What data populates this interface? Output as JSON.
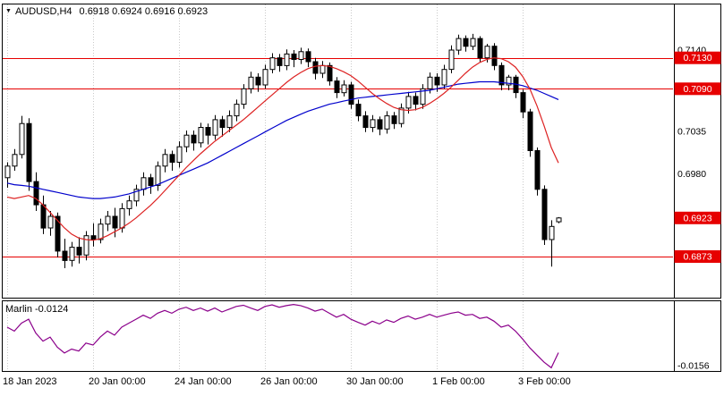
{
  "header": {
    "dropdown_icon": "▼",
    "symbol_period": "AUDUSD,H4",
    "open": "0.6918",
    "high": "0.6924",
    "low": "0.6916",
    "close": "0.6923"
  },
  "colors": {
    "level_line": "#e60000",
    "badge_bg": "#e60000",
    "badge_text": "#ffffff",
    "ma_slow": "#0000cc",
    "ma_fast": "#dd2222",
    "grid": "#c9c9c9",
    "bull": "#ffffff",
    "bear": "#000000",
    "outline": "#000000",
    "border": "#000000"
  },
  "chart_data": [
    {
      "type": "candlestick",
      "symbol": "AUDUSD",
      "timeframe": "H4",
      "title": "AUDUSD,H4",
      "current_ohlc": {
        "open": 0.6918,
        "high": 0.6924,
        "low": 0.6916,
        "close": 0.6923
      },
      "ylim": [
        0.6821,
        0.7199
      ],
      "x_tick_labels": [
        "18 Jan 2023",
        "20 Jan 00:00",
        "24 Jan 00:00",
        "26 Jan 00:00",
        "30 Jan 00:00",
        "1 Feb 00:00",
        "3 Feb 00:00"
      ],
      "x_tick_indices": [
        0,
        12,
        24,
        36,
        48,
        60,
        72
      ],
      "y_plain_labels": [
        {
          "label": "0.7140",
          "value": 0.714
        },
        {
          "label": "0.7035",
          "value": 0.7035
        },
        {
          "label": "0.6980",
          "value": 0.698
        }
      ],
      "badges": [
        {
          "label": "0.7130",
          "value": 0.713
        },
        {
          "label": "0.7090",
          "value": 0.709
        },
        {
          "label": "0.6923",
          "value": 0.6923
        },
        {
          "label": "0.6873",
          "value": 0.6873
        }
      ],
      "h_lines": [
        0.713,
        0.709,
        0.6873
      ],
      "current_price": 0.6923,
      "candles": [
        [
          0.6975,
          0.6995,
          0.6962,
          0.699
        ],
        [
          0.699,
          0.7012,
          0.6984,
          0.7005
        ],
        [
          0.7005,
          0.7055,
          0.7,
          0.7045
        ],
        [
          0.7045,
          0.7052,
          0.6958,
          0.697
        ],
        [
          0.697,
          0.6982,
          0.6932,
          0.694
        ],
        [
          0.694,
          0.6952,
          0.6902,
          0.691
        ],
        [
          0.691,
          0.6932,
          0.69,
          0.6925
        ],
        [
          0.6925,
          0.693,
          0.6872,
          0.688
        ],
        [
          0.688,
          0.6896,
          0.6858,
          0.6868
        ],
        [
          0.6868,
          0.6892,
          0.686,
          0.6885
        ],
        [
          0.6885,
          0.6898,
          0.6864,
          0.6875
        ],
        [
          0.6875,
          0.6906,
          0.6868,
          0.69
        ],
        [
          0.69,
          0.6916,
          0.6886,
          0.6895
        ],
        [
          0.6895,
          0.6922,
          0.689,
          0.6915
        ],
        [
          0.6915,
          0.6932,
          0.6906,
          0.6925
        ],
        [
          0.6925,
          0.6936,
          0.6898,
          0.691
        ],
        [
          0.691,
          0.6942,
          0.6904,
          0.6935
        ],
        [
          0.6935,
          0.6952,
          0.6926,
          0.6945
        ],
        [
          0.6945,
          0.6966,
          0.6938,
          0.696
        ],
        [
          0.696,
          0.6982,
          0.6952,
          0.6975
        ],
        [
          0.6975,
          0.698,
          0.6954,
          0.6965
        ],
        [
          0.6965,
          0.6996,
          0.6958,
          0.699
        ],
        [
          0.699,
          0.7012,
          0.6982,
          0.7005
        ],
        [
          0.7005,
          0.701,
          0.6984,
          0.6995
        ],
        [
          0.6995,
          0.7022,
          0.6988,
          0.7015
        ],
        [
          0.7015,
          0.7036,
          0.7008,
          0.703
        ],
        [
          0.703,
          0.7036,
          0.701,
          0.702
        ],
        [
          0.702,
          0.7046,
          0.7014,
          0.704
        ],
        [
          0.704,
          0.7045,
          0.7018,
          0.703
        ],
        [
          0.703,
          0.7056,
          0.7024,
          0.705
        ],
        [
          0.705,
          0.7055,
          0.7028,
          0.704
        ],
        [
          0.704,
          0.7062,
          0.7034,
          0.7055
        ],
        [
          0.7055,
          0.7076,
          0.7048,
          0.707
        ],
        [
          0.707,
          0.7096,
          0.7064,
          0.709
        ],
        [
          0.709,
          0.7112,
          0.7084,
          0.7105
        ],
        [
          0.7105,
          0.711,
          0.7086,
          0.7095
        ],
        [
          0.7095,
          0.7121,
          0.709,
          0.7115
        ],
        [
          0.7115,
          0.7136,
          0.711,
          0.713
        ],
        [
          0.713,
          0.7135,
          0.7112,
          0.712
        ],
        [
          0.712,
          0.7141,
          0.7114,
          0.7135
        ],
        [
          0.7135,
          0.714,
          0.7118,
          0.7128
        ],
        [
          0.7128,
          0.7143,
          0.7122,
          0.7138
        ],
        [
          0.7138,
          0.7142,
          0.7118,
          0.7125
        ],
        [
          0.7125,
          0.713,
          0.7102,
          0.711
        ],
        [
          0.711,
          0.7126,
          0.7104,
          0.712
        ],
        [
          0.712,
          0.7124,
          0.7094,
          0.71
        ],
        [
          0.71,
          0.7105,
          0.7078,
          0.7085
        ],
        [
          0.7085,
          0.7101,
          0.708,
          0.7095
        ],
        [
          0.7095,
          0.7099,
          0.7064,
          0.707
        ],
        [
          0.707,
          0.7076,
          0.7048,
          0.7055
        ],
        [
          0.7055,
          0.7061,
          0.7034,
          0.704
        ],
        [
          0.704,
          0.7056,
          0.7034,
          0.705
        ],
        [
          0.705,
          0.7054,
          0.703,
          0.7038
        ],
        [
          0.7038,
          0.7061,
          0.7032,
          0.7055
        ],
        [
          0.7055,
          0.706,
          0.7038,
          0.7045
        ],
        [
          0.7045,
          0.7071,
          0.704,
          0.7065
        ],
        [
          0.7065,
          0.7086,
          0.7058,
          0.708
        ],
        [
          0.708,
          0.7085,
          0.7062,
          0.707
        ],
        [
          0.707,
          0.7096,
          0.7064,
          0.709
        ],
        [
          0.709,
          0.7111,
          0.7084,
          0.7105
        ],
        [
          0.7105,
          0.711,
          0.7086,
          0.7095
        ],
        [
          0.7095,
          0.7121,
          0.709,
          0.7115
        ],
        [
          0.7115,
          0.7146,
          0.711,
          0.714
        ],
        [
          0.714,
          0.716,
          0.7134,
          0.7155
        ],
        [
          0.7155,
          0.7159,
          0.7138,
          0.7145
        ],
        [
          0.7145,
          0.7161,
          0.714,
          0.7155
        ],
        [
          0.7155,
          0.7158,
          0.7124,
          0.713
        ],
        [
          0.713,
          0.7148,
          0.7124,
          0.7145
        ],
        [
          0.7145,
          0.7149,
          0.7114,
          0.712
        ],
        [
          0.712,
          0.7124,
          0.7088,
          0.7095
        ],
        [
          0.7095,
          0.7108,
          0.7088,
          0.7105
        ],
        [
          0.7105,
          0.7108,
          0.7078,
          0.7085
        ],
        [
          0.7085,
          0.7089,
          0.7052,
          0.706
        ],
        [
          0.706,
          0.7064,
          0.7002,
          0.701
        ],
        [
          0.701,
          0.7014,
          0.6952,
          0.696
        ],
        [
          0.696,
          0.6965,
          0.6888,
          0.6895
        ],
        [
          0.6895,
          0.692,
          0.686,
          0.6912
        ],
        [
          0.6918,
          0.6924,
          0.6916,
          0.6923
        ]
      ],
      "series": [
        {
          "name": "ma-slow-line",
          "color": "#0000cc",
          "values": [
            0.6968,
            0.6966,
            0.6965,
            0.6964,
            0.6962,
            0.696,
            0.6958,
            0.6956,
            0.6954,
            0.6952,
            0.695,
            0.6949,
            0.6948,
            0.6948,
            0.6949,
            0.695,
            0.6952,
            0.6954,
            0.6957,
            0.696,
            0.6963,
            0.6966,
            0.697,
            0.6974,
            0.6978,
            0.6982,
            0.6986,
            0.699,
            0.6994,
            0.6999,
            0.7004,
            0.7009,
            0.7014,
            0.7019,
            0.7024,
            0.7029,
            0.7034,
            0.7039,
            0.7044,
            0.7049,
            0.7053,
            0.7057,
            0.7061,
            0.7064,
            0.7067,
            0.707,
            0.7072,
            0.7074,
            0.7076,
            0.7078,
            0.7079,
            0.708,
            0.7081,
            0.7082,
            0.7083,
            0.7084,
            0.7085,
            0.7086,
            0.7087,
            0.7088,
            0.709,
            0.7092,
            0.7094,
            0.7096,
            0.7097,
            0.7098,
            0.7099,
            0.7099,
            0.7099,
            0.7098,
            0.7097,
            0.7096,
            0.7094,
            0.7091,
            0.7088,
            0.7084,
            0.708,
            0.7076
          ]
        },
        {
          "name": "ma-fast-line",
          "color": "#dd2222",
          "values": [
            0.695,
            0.6948,
            0.695,
            0.6952,
            0.6948,
            0.694,
            0.693,
            0.692,
            0.691,
            0.6902,
            0.6897,
            0.6895,
            0.6894,
            0.6896,
            0.69,
            0.6905,
            0.691,
            0.6916,
            0.6923,
            0.6931,
            0.6939,
            0.6948,
            0.6958,
            0.6968,
            0.6978,
            0.6988,
            0.6997,
            0.7006,
            0.7014,
            0.7022,
            0.7029,
            0.7036,
            0.7043,
            0.705,
            0.7058,
            0.7066,
            0.7074,
            0.7082,
            0.709,
            0.7098,
            0.7105,
            0.7111,
            0.7116,
            0.7119,
            0.712,
            0.7119,
            0.7116,
            0.7112,
            0.7107,
            0.71,
            0.7092,
            0.7084,
            0.7077,
            0.7071,
            0.7066,
            0.7063,
            0.7062,
            0.7063,
            0.7066,
            0.7071,
            0.7077,
            0.7084,
            0.7092,
            0.7101,
            0.711,
            0.7118,
            0.7124,
            0.7128,
            0.713,
            0.7129,
            0.7125,
            0.7118,
            0.7106,
            0.709,
            0.7068,
            0.7042,
            0.7014,
            0.6994
          ]
        }
      ]
    },
    {
      "type": "line",
      "title": "Marlin",
      "label_value": "-0.0124",
      "color": "#8b008b",
      "ylim": [
        -0.017,
        0.0005
      ],
      "y_plain_labels": [
        {
          "label": "-0.0156",
          "value": -0.0156
        }
      ],
      "values": [
        -0.006,
        -0.007,
        -0.005,
        -0.004,
        -0.0075,
        -0.0095,
        -0.0085,
        -0.011,
        -0.0125,
        -0.0115,
        -0.012,
        -0.01,
        -0.0105,
        -0.0085,
        -0.007,
        -0.008,
        -0.006,
        -0.005,
        -0.004,
        -0.003,
        -0.0038,
        -0.0025,
        -0.0018,
        -0.0025,
        -0.0015,
        -0.001,
        -0.0018,
        -0.0012,
        -0.002,
        -0.0012,
        -0.0022,
        -0.0015,
        -0.0008,
        -0.0005,
        -0.0012,
        -0.0018,
        -0.0008,
        -0.0004,
        -0.001,
        -0.0006,
        -0.0003,
        -0.0006,
        -0.0012,
        -0.002,
        -0.0015,
        -0.0025,
        -0.0035,
        -0.0028,
        -0.004,
        -0.0048,
        -0.0055,
        -0.0045,
        -0.0052,
        -0.0042,
        -0.0048,
        -0.0038,
        -0.0032,
        -0.004,
        -0.0035,
        -0.0028,
        -0.0035,
        -0.003,
        -0.0025,
        -0.0022,
        -0.003,
        -0.0028,
        -0.0038,
        -0.0035,
        -0.0045,
        -0.006,
        -0.0055,
        -0.007,
        -0.009,
        -0.0112,
        -0.013,
        -0.0148,
        -0.0162,
        -0.0124
      ]
    }
  ]
}
